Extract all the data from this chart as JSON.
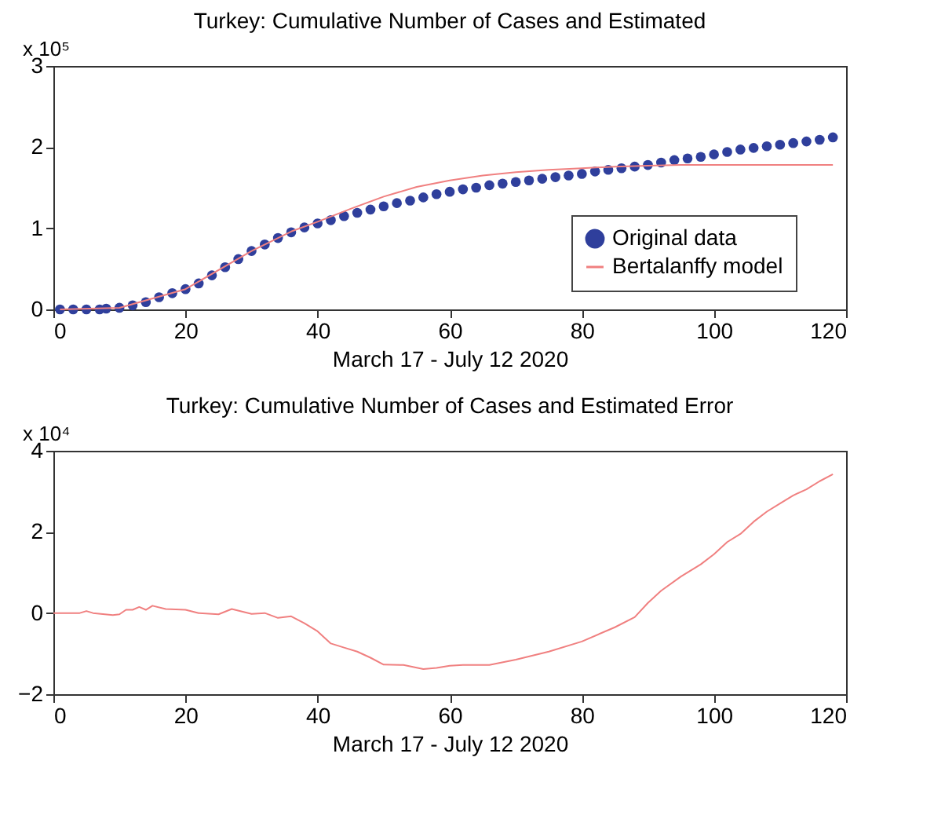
{
  "chart_data": [
    {
      "type": "scatter",
      "title": "Turkey: Cumulative Number of Cases and Estimated",
      "xlabel": "March 17 - July 12 2020",
      "ylabel": "x 10⁵",
      "xlim": [
        0,
        120
      ],
      "xticks": [
        0,
        20,
        40,
        60,
        80,
        100,
        120
      ],
      "ylim": [
        0,
        3
      ],
      "yticks": [
        0,
        1,
        2,
        3
      ],
      "grid": false,
      "legend": "right",
      "series": [
        {
          "name": "Original data",
          "marker": "circle",
          "color": "#2f3f9c",
          "x": [
            1,
            3,
            5,
            7,
            8,
            10,
            12,
            14,
            16,
            18,
            20,
            22,
            24,
            26,
            28,
            30,
            32,
            34,
            36,
            38,
            40,
            42,
            44,
            46,
            48,
            50,
            52,
            54,
            56,
            58,
            60,
            62,
            64,
            66,
            68,
            70,
            72,
            74,
            76,
            78,
            80,
            82,
            84,
            86,
            88,
            90,
            92,
            94,
            96,
            98,
            100,
            102,
            104,
            106,
            108,
            110,
            112,
            114,
            116,
            118
          ],
          "values": [
            0,
            0,
            0,
            0,
            0.01,
            0.02,
            0.05,
            0.09,
            0.15,
            0.2,
            0.25,
            0.32,
            0.42,
            0.52,
            0.62,
            0.72,
            0.8,
            0.88,
            0.95,
            1.01,
            1.06,
            1.1,
            1.15,
            1.19,
            1.23,
            1.27,
            1.31,
            1.34,
            1.38,
            1.42,
            1.45,
            1.48,
            1.5,
            1.53,
            1.55,
            1.57,
            1.59,
            1.61,
            1.63,
            1.65,
            1.67,
            1.7,
            1.72,
            1.74,
            1.76,
            1.78,
            1.81,
            1.84,
            1.86,
            1.88,
            1.91,
            1.94,
            1.97,
            1.99,
            2.01,
            2.03,
            2.05,
            2.07,
            2.09,
            2.12
          ]
        },
        {
          "name": "Bertalanffy model",
          "type": "line",
          "line_style": "solid",
          "color": "#f08080",
          "x": [
            1,
            10,
            20,
            30,
            36,
            40,
            45,
            50,
            55,
            60,
            65,
            70,
            75,
            80,
            85,
            90,
            95,
            100,
            110,
            118
          ],
          "values": [
            0,
            0.02,
            0.25,
            0.72,
            0.96,
            1.08,
            1.24,
            1.39,
            1.51,
            1.59,
            1.65,
            1.69,
            1.72,
            1.74,
            1.76,
            1.77,
            1.78,
            1.78,
            1.78,
            1.78
          ]
        }
      ]
    },
    {
      "type": "line",
      "title": "Turkey: Cumulative Number of Cases and Estimated Error",
      "xlabel": "March 17 - July 12 2020",
      "ylabel": "x 10⁴",
      "xlim": [
        0,
        120
      ],
      "xticks": [
        0,
        20,
        40,
        60,
        80,
        100,
        120
      ],
      "ylim": [
        -2,
        4
      ],
      "yticks": [
        -2,
        0,
        2,
        4
      ],
      "grid": false,
      "legend": false,
      "series": [
        {
          "line_style": "solid",
          "color": "#f08080",
          "x": [
            0,
            4,
            5,
            6,
            9,
            10,
            11,
            12,
            13,
            14,
            15,
            17,
            20,
            22,
            25,
            27,
            30,
            32,
            34,
            36,
            38,
            40,
            42,
            44,
            46,
            48,
            50,
            53,
            56,
            58,
            60,
            62,
            66,
            70,
            75,
            80,
            85,
            88,
            90,
            92,
            95,
            98,
            100,
            102,
            104,
            106,
            108,
            110,
            112,
            114,
            116,
            118
          ],
          "values": [
            0,
            0,
            0.05,
            0,
            -0.05,
            -0.03,
            0.08,
            0.08,
            0.15,
            0.08,
            0.18,
            0.1,
            0.08,
            0,
            -0.03,
            0.1,
            -0.02,
            0,
            -0.12,
            -0.08,
            -0.25,
            -0.45,
            -0.75,
            -0.85,
            -0.95,
            -1.1,
            -1.27,
            -1.28,
            -1.38,
            -1.35,
            -1.3,
            -1.28,
            -1.28,
            -1.15,
            -0.95,
            -0.7,
            -0.35,
            -0.1,
            0.25,
            0.55,
            0.9,
            1.2,
            1.45,
            1.75,
            1.95,
            2.25,
            2.5,
            2.7,
            2.9,
            3.05,
            3.25,
            3.42
          ]
        }
      ]
    }
  ]
}
